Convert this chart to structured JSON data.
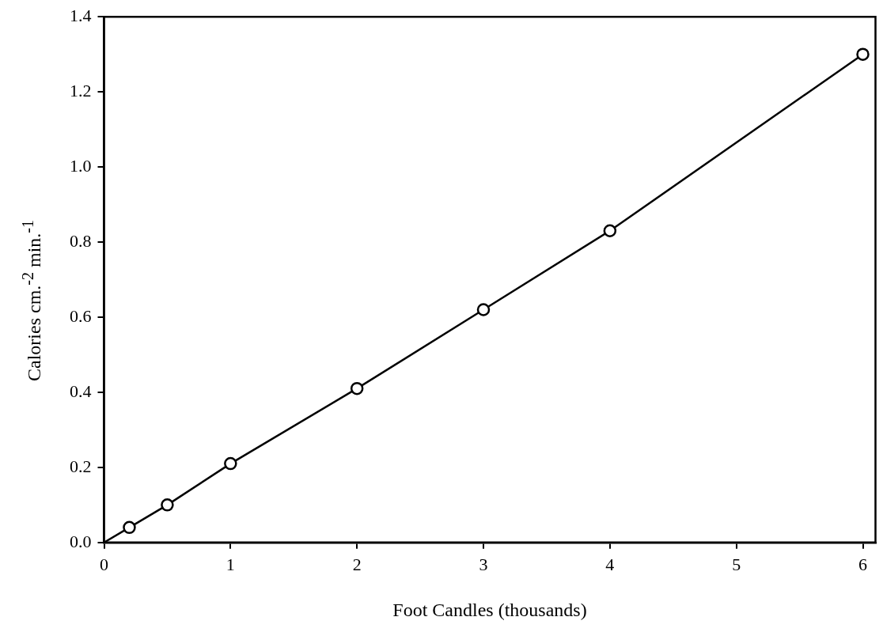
{
  "chart_data": {
    "type": "scatter",
    "xlabel": "Foot Candles (thousands)",
    "ylabel": "Calories cm.$^{-2}$ min.$^{-1}$",
    "xlim": [
      0,
      6.1
    ],
    "xticks": [
      0,
      1,
      2,
      3,
      4,
      5,
      6
    ],
    "ylim": [
      0,
      1.4
    ],
    "yticks": [
      {
        "value": 0,
        "label": "0.0"
      },
      {
        "value": 0.2,
        "label": "0.2"
      },
      {
        "value": 0.4,
        "label": "0.4"
      },
      {
        "value": 0.6,
        "label": "0.6"
      },
      {
        "value": 0.8,
        "label": "0.8"
      },
      {
        "value": 1.0,
        "label": "1.0"
      },
      {
        "value": 1.2,
        "label": "1.2"
      },
      {
        "value": 1.4,
        "label": "1.4"
      }
    ],
    "grid": false,
    "legend": false,
    "series": [
      {
        "type": "scatter",
        "color": "#000000",
        "marker": "circle",
        "x": [
          0.2,
          0.5,
          1,
          2,
          3,
          4,
          6
        ],
        "values": [
          0.04,
          0.1,
          0.21,
          0.41,
          0.62,
          0.83,
          1.3
        ]
      },
      {
        "type": "line",
        "color": "#000000",
        "marker": "none",
        "line_style": "solid",
        "x": [
          0,
          0.2,
          0.5,
          1,
          2,
          3,
          4,
          6
        ],
        "values": [
          0,
          0.04,
          0.1,
          0.21,
          0.41,
          0.62,
          0.83,
          1.3
        ]
      }
    ]
  }
}
